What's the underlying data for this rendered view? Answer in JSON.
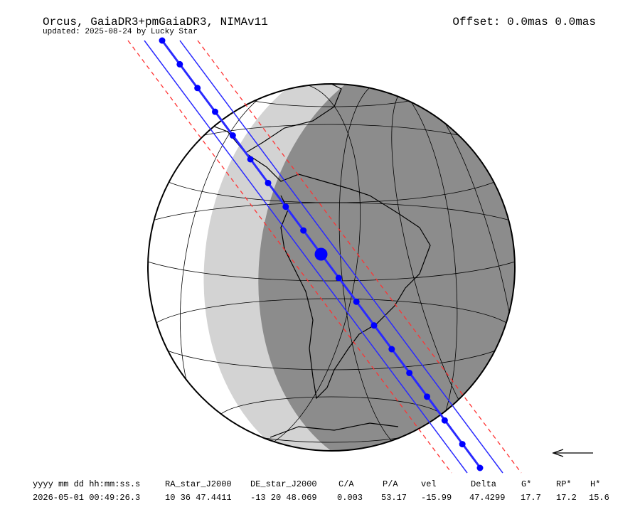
{
  "header": {
    "title": "Orcus, GaiaDR3+pmGaiaDR3, NIMAv11",
    "subtitle": "updated: 2025-08-24 by Lucky Star",
    "offset": "Offset: 0.0mas 0.0mas"
  },
  "table": {
    "columns": [
      "yyyy mm dd hh:mm:ss.s",
      "RA_star_J2000",
      "DE_star_J2000",
      "C/A",
      "P/A",
      "vel",
      "Delta",
      "G*",
      "RP*",
      "H*"
    ],
    "rows": [
      [
        "2026-05-01 00:49:26.3",
        "10 36 47.4411",
        "-13 20 48.069",
        "0.003",
        "53.17",
        "-15.99",
        "47.4299",
        "17.7",
        "17.2",
        "15.6"
      ]
    ]
  }
}
